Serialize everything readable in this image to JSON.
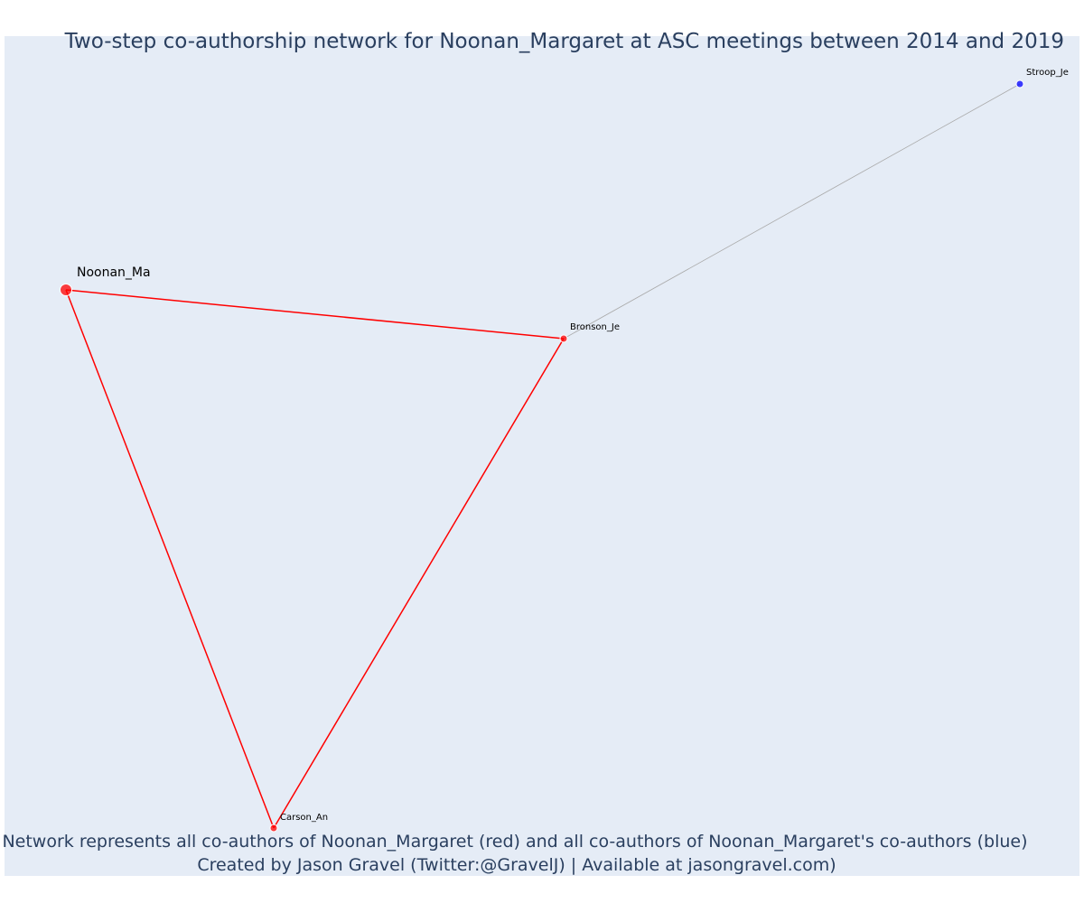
{
  "title": "Two-step co-authorship network for Noonan_Margaret at ASC meetings between 2014 and 2019",
  "caption_line1": "Network represents all co-authors of Noonan_Margaret (red) and all co-authors of Noonan_Margaret's co-authors (blue)",
  "caption_line2": "Created by Jason Gravel (Twitter:@GravelJ) | Available at jasongravel.com)",
  "colors": {
    "background": "#e5ecf6",
    "text": "#2a3f5f",
    "direct": "#ff0000",
    "indirect": "#0000ff",
    "indirect_edge": "#aaaaaa"
  },
  "chart_data": {
    "type": "network",
    "nodes": [
      {
        "id": "Noonan_Ma",
        "label": "Noonan_Ma",
        "group": "focal"
      },
      {
        "id": "Bronson_Je",
        "label": "Bronson_Je",
        "group": "direct"
      },
      {
        "id": "Carson_An",
        "label": "Carson_An",
        "group": "direct"
      },
      {
        "id": "Stroop_Je",
        "label": "Stroop_Je",
        "group": "indirect"
      }
    ],
    "edges": [
      {
        "source": "Noonan_Ma",
        "target": "Bronson_Je",
        "group": "direct"
      },
      {
        "source": "Noonan_Ma",
        "target": "Carson_An",
        "group": "direct"
      },
      {
        "source": "Bronson_Je",
        "target": "Carson_An",
        "group": "direct"
      },
      {
        "source": "Bronson_Je",
        "target": "Stroop_Je",
        "group": "indirect"
      }
    ]
  }
}
